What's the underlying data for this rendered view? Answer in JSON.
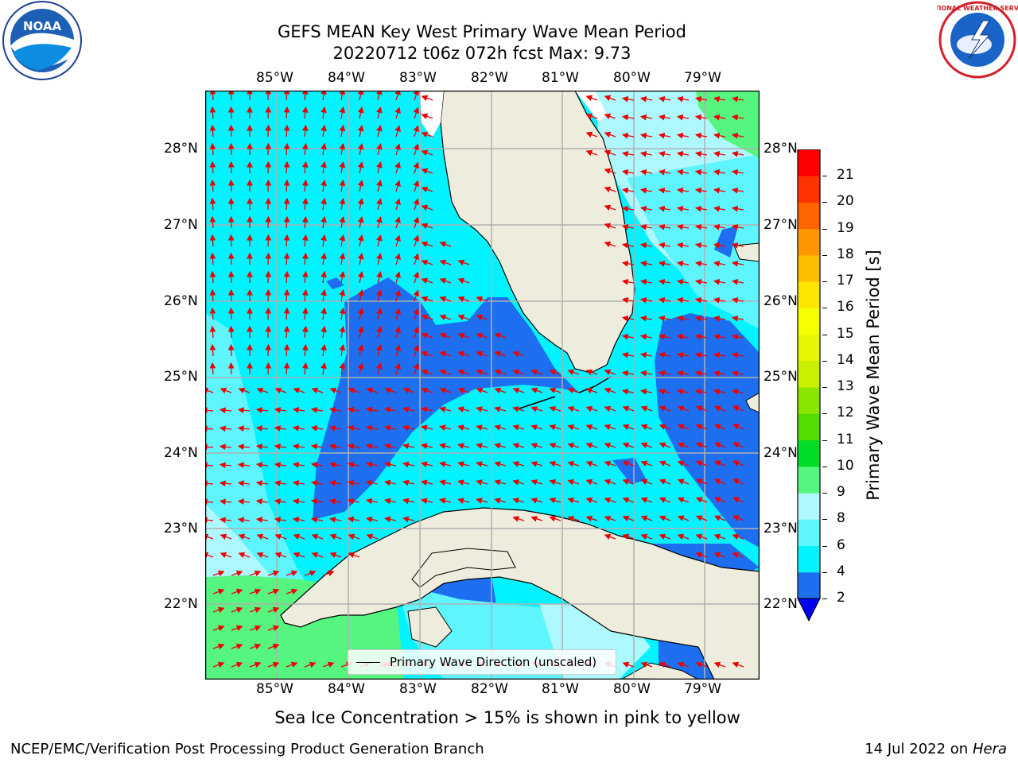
{
  "header": {
    "title_line1": "GEFS MEAN Key West Primary Wave Mean Period",
    "title_line2": "20220712 t06z 072h fcst   Max: 9.73"
  },
  "logos": {
    "left": {
      "text": "NOAA",
      "icon": "noaa-logo"
    },
    "right": {
      "text": "NATIONAL WEATHER SERVICE",
      "icon": "nws-logo"
    }
  },
  "map": {
    "lon_labels": [
      "85°W",
      "84°W",
      "83°W",
      "82°W",
      "81°W",
      "80°W",
      "79°W"
    ],
    "lat_labels": [
      "28°N",
      "27°N",
      "26°N",
      "25°N",
      "24°N",
      "23°N",
      "22°N"
    ],
    "legend_label": "Primary Wave Direction (unscaled)",
    "colors": {
      "land": "#eeecdc",
      "band_2_4": "#1e6ff0",
      "band_4_6": "#00f3ff",
      "band_6_8": "#5ff5ff",
      "band_8_9": "#aef8ff",
      "band_9_10": "#55f580",
      "arrow": "#ee0000",
      "grid": "#b0b0b0"
    }
  },
  "colorbar": {
    "label": "Primary Wave Mean Period [s]",
    "ticks": [
      "2",
      "4",
      "6",
      "8",
      "9",
      "10",
      "11",
      "12",
      "13",
      "14",
      "15",
      "16",
      "17",
      "18",
      "19",
      "20",
      "21"
    ],
    "colors": [
      "#1e6ff0",
      "#00f3ff",
      "#5ff5ff",
      "#aef8ff",
      "#55f580",
      "#00dc28",
      "#55dc00",
      "#8ae600",
      "#c8f000",
      "#e6f500",
      "#f5ff00",
      "#ffe600",
      "#ffbe00",
      "#ff9600",
      "#ff6400",
      "#ff3200",
      "#ff0000"
    ],
    "under_color": "#0000ee"
  },
  "notes": {
    "sea_ice": "Sea Ice Concentration > 15% is shown in pink to yellow"
  },
  "footer": {
    "left": "NCEP/EMC/Verification Post Processing Product Generation Branch",
    "date": "14 Jul 2022 on ",
    "machine": "Hera"
  }
}
